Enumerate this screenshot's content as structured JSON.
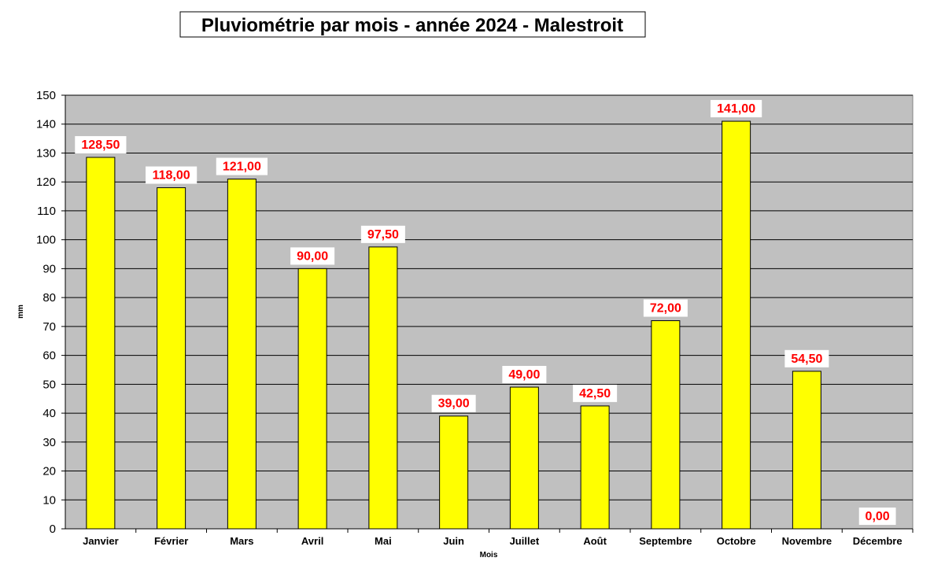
{
  "chart_data": {
    "type": "bar",
    "title": "Pluviométrie par mois - année 2024 - Malestroit",
    "xlabel": "Mois",
    "ylabel": "mm",
    "ylim": [
      0,
      150
    ],
    "ytick_step": 10,
    "grid": true,
    "legend": "none",
    "categories": [
      "Janvier",
      "Février",
      "Mars",
      "Avril",
      "Mai",
      "Juin",
      "Juillet",
      "Août",
      "Septembre",
      "Octobre",
      "Novembre",
      "Décembre"
    ],
    "values": [
      128.5,
      118.0,
      121.0,
      90.0,
      97.5,
      39.0,
      49.0,
      42.5,
      72.0,
      141.0,
      54.5,
      0.0
    ],
    "data_labels": [
      "128,50",
      "118,00",
      "121,00",
      "90,00",
      "97,50",
      "39,00",
      "49,00",
      "42,50",
      "72,00",
      "141,00",
      "54,50",
      "0,00"
    ],
    "colors": {
      "bar_fill": "#ffff00",
      "bar_stroke": "#000000",
      "plot_background": "#c0c0c0",
      "grid": "#000000",
      "data_label": "#ff0000"
    }
  }
}
